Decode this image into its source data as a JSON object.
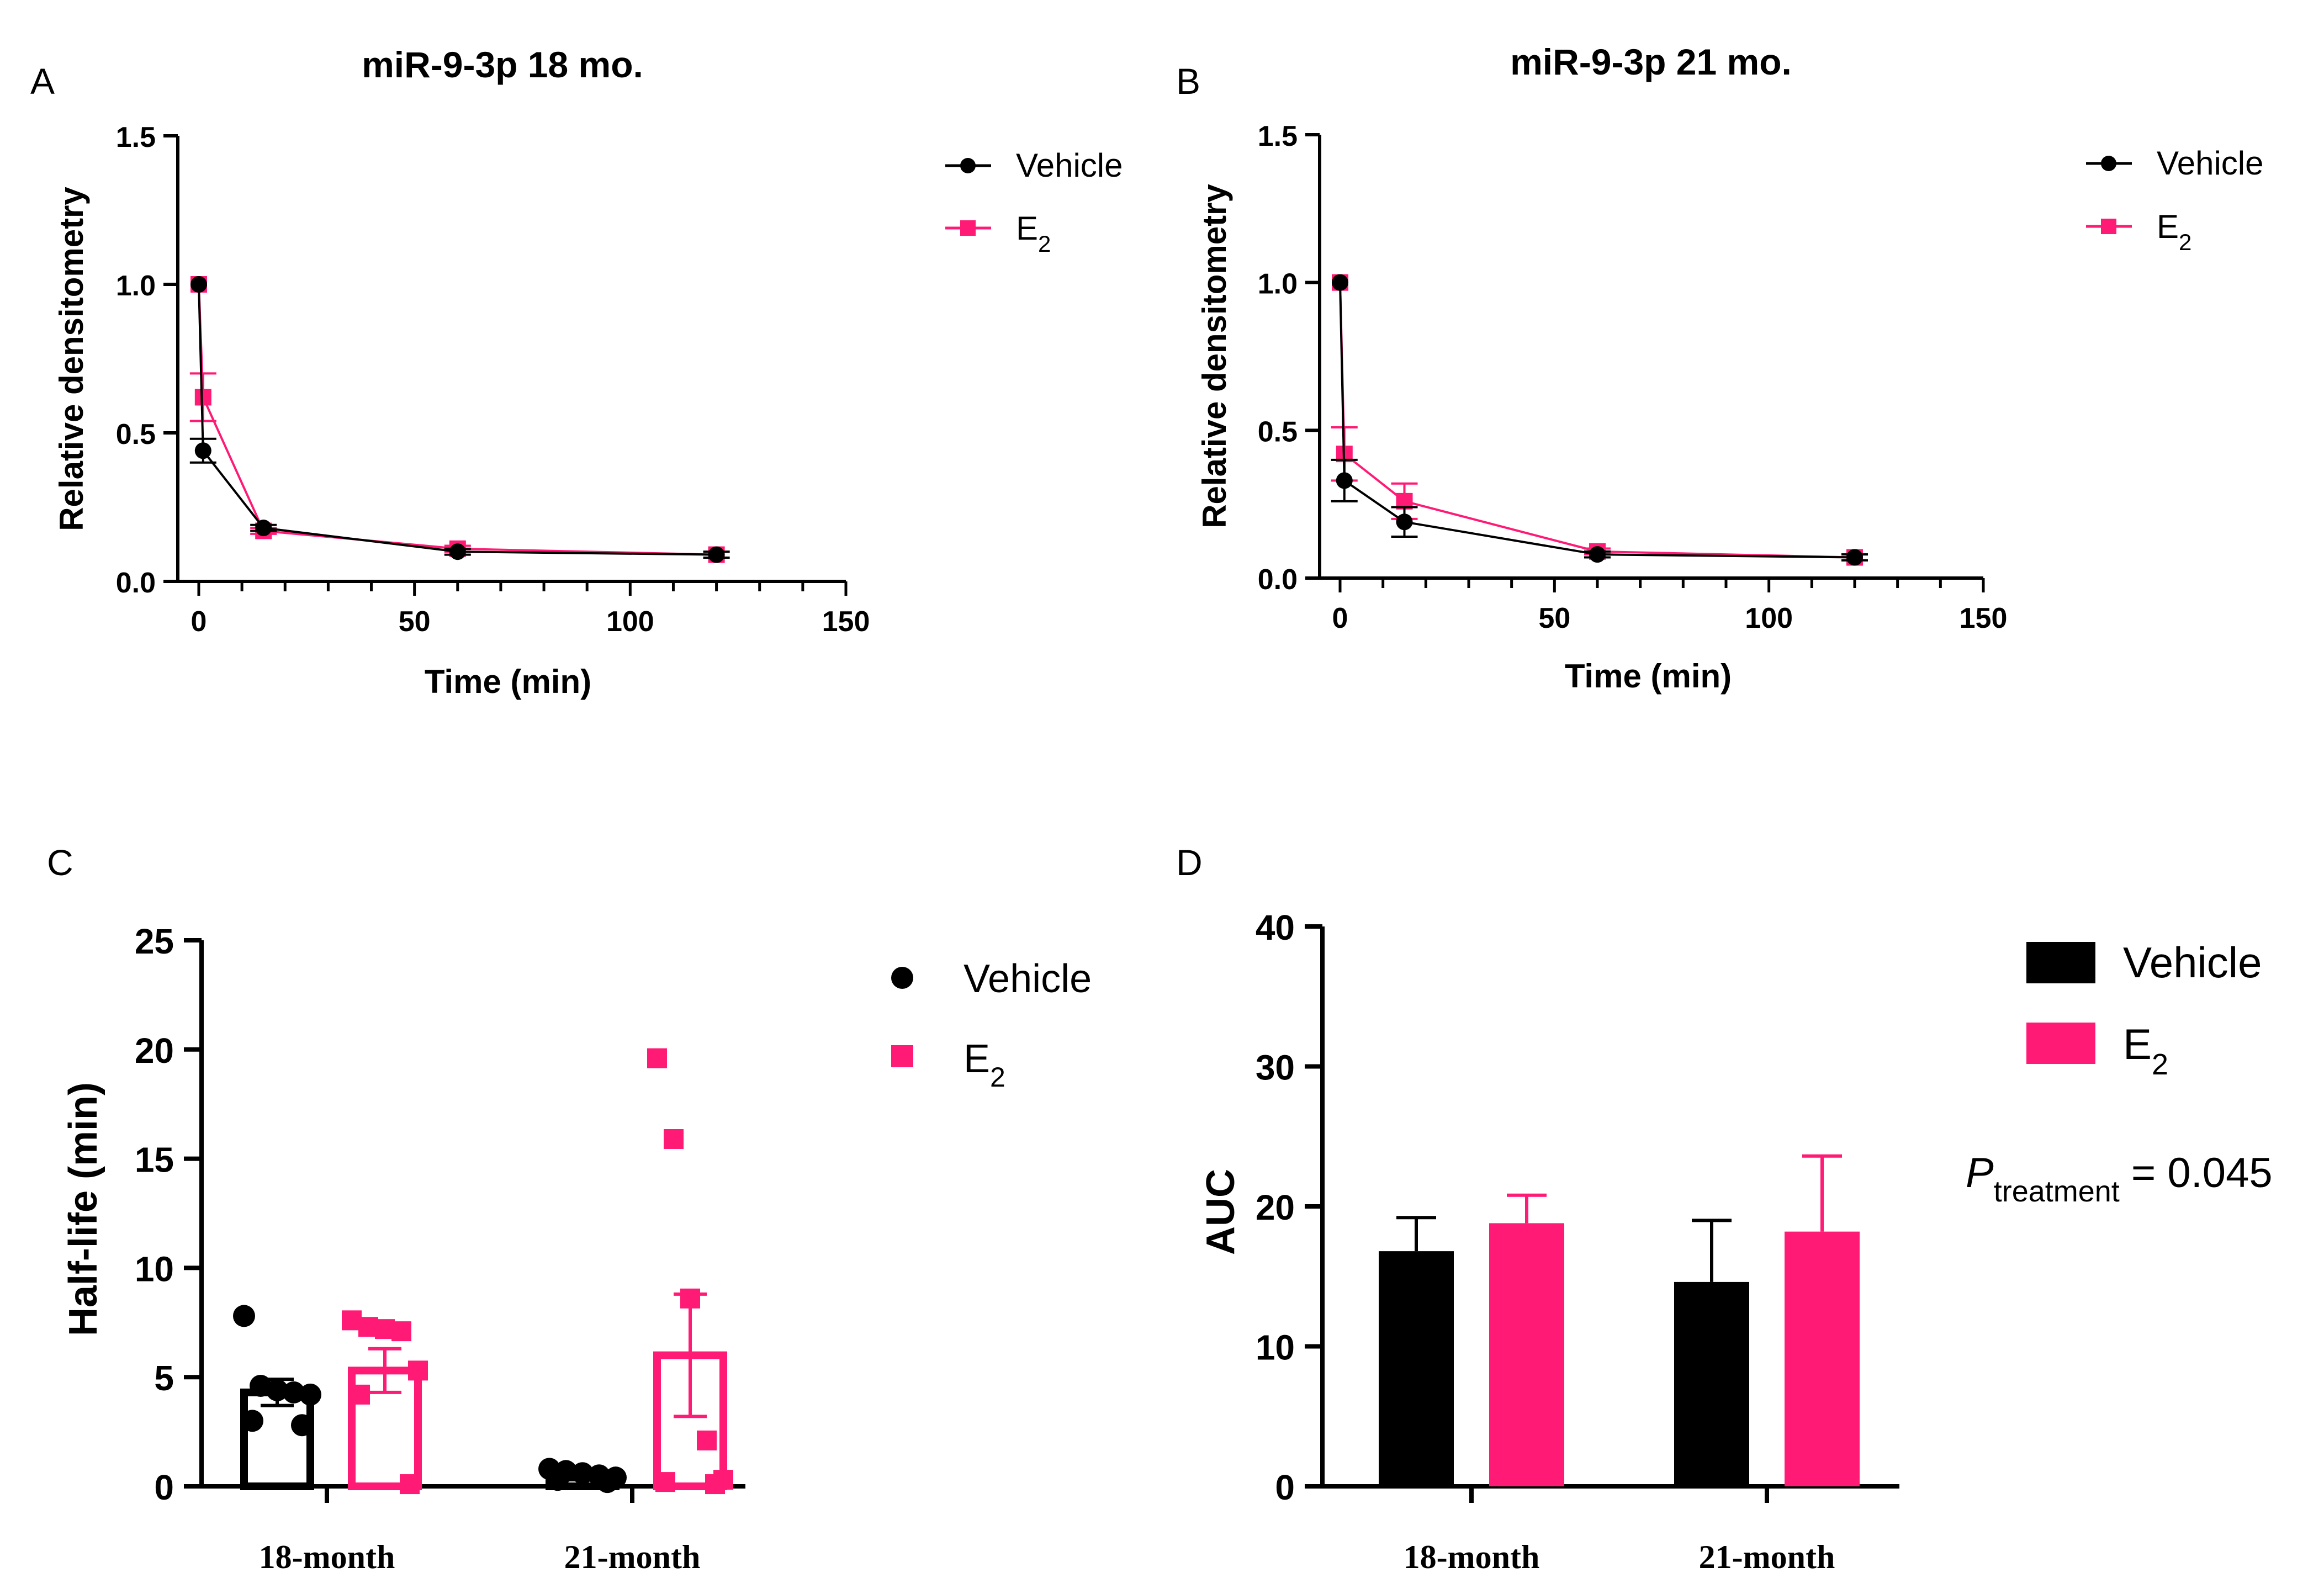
{
  "colors": {
    "vehicle": "#000000",
    "e2": "#ff1a75"
  },
  "chart_data": [
    {
      "panel": "A",
      "type": "line",
      "title": "miR-9-3p 18 mo.",
      "xlabel": "Time (min)",
      "ylabel": "Relative densitometry",
      "xlim": [
        0,
        150
      ],
      "ylim": [
        0,
        1.5
      ],
      "xticks": [
        "0",
        "50",
        "100",
        "150"
      ],
      "yticks": [
        "0.0",
        "0.5",
        "1.0",
        "1.5"
      ],
      "legend": {
        "position": "top-right",
        "vehicle": "Vehicle",
        "e2_main": "E",
        "e2_sub": "2"
      },
      "series": [
        {
          "name": "Vehicle",
          "x": [
            0,
            1,
            15,
            60,
            120
          ],
          "y": [
            1.0,
            0.44,
            0.18,
            0.1,
            0.09
          ],
          "err": [
            0,
            0.04,
            0.01,
            0.01,
            0.01
          ]
        },
        {
          "name": "E2",
          "x": [
            0,
            1,
            15,
            60,
            120
          ],
          "y": [
            1.0,
            0.62,
            0.17,
            0.11,
            0.09
          ],
          "err": [
            0,
            0.08,
            0.01,
            0.01,
            0.01
          ]
        }
      ]
    },
    {
      "panel": "B",
      "type": "line",
      "title": "miR-9-3p 21 mo.",
      "xlabel": "Time (min)",
      "ylabel": "Relative densitometry",
      "xlim": [
        0,
        150
      ],
      "ylim": [
        0,
        1.5
      ],
      "xticks": [
        "0",
        "50",
        "100",
        "150"
      ],
      "yticks": [
        "0.0",
        "0.5",
        "1.0",
        "1.5"
      ],
      "legend": {
        "position": "top-right",
        "vehicle": "Vehicle",
        "e2_main": "E",
        "e2_sub": "2"
      },
      "series": [
        {
          "name": "Vehicle",
          "x": [
            0,
            1,
            15,
            60,
            120
          ],
          "y": [
            1.0,
            0.33,
            0.19,
            0.08,
            0.07
          ],
          "err": [
            0,
            0.07,
            0.05,
            0.01,
            0.01
          ]
        },
        {
          "name": "E2",
          "x": [
            0,
            1,
            15,
            60,
            120
          ],
          "y": [
            1.0,
            0.42,
            0.26,
            0.09,
            0.07
          ],
          "err": [
            0,
            0.09,
            0.06,
            0.01,
            0.01
          ]
        }
      ]
    },
    {
      "panel": "C",
      "type": "bar",
      "style": "outline-with-points",
      "ylabel": "Half-life (min)",
      "categories": [
        "18-month",
        "21-month"
      ],
      "ylim": [
        0,
        25
      ],
      "yticks": [
        "0",
        "5",
        "10",
        "15",
        "20",
        "25"
      ],
      "legend": {
        "position": "top-right",
        "vehicle": "Vehicle",
        "e2_main": "E",
        "e2_sub": "2"
      },
      "series": [
        {
          "name": "Vehicle",
          "values": [
            4.3,
            0.5
          ],
          "sem": [
            0.6,
            0.2
          ],
          "points": [
            [
              7.8,
              4.6,
              4.4,
              4.3,
              4.2,
              3.0,
              2.8
            ],
            [
              0.8,
              0.7,
              0.6,
              0.5,
              0.4,
              0.3,
              0.2
            ]
          ]
        },
        {
          "name": "E2",
          "values": [
            5.3,
            6.0
          ],
          "sem": [
            1.0,
            2.8
          ],
          "points": [
            [
              7.6,
              7.3,
              7.2,
              7.1,
              5.3,
              4.2,
              0.1
            ],
            [
              19.6,
              15.9,
              8.6,
              2.1,
              0.3,
              0.2,
              0.1
            ]
          ]
        }
      ]
    },
    {
      "panel": "D",
      "type": "bar",
      "ylabel": "AUC",
      "categories": [
        "18-month",
        "21-month"
      ],
      "ylim": [
        0,
        40
      ],
      "yticks": [
        "0",
        "10",
        "20",
        "30",
        "40"
      ],
      "legend": {
        "position": "top-right",
        "vehicle": "Vehicle",
        "e2_main": "E",
        "e2_sub": "2"
      },
      "annotation": {
        "p_main": "P",
        "p_sub": "treatment",
        "p_value": " = 0.045"
      },
      "series": [
        {
          "name": "Vehicle",
          "values": [
            16.8,
            14.6
          ],
          "err": [
            2.4,
            4.4
          ]
        },
        {
          "name": "E2",
          "values": [
            18.8,
            18.2
          ],
          "err": [
            2.0,
            5.4
          ]
        }
      ]
    }
  ]
}
